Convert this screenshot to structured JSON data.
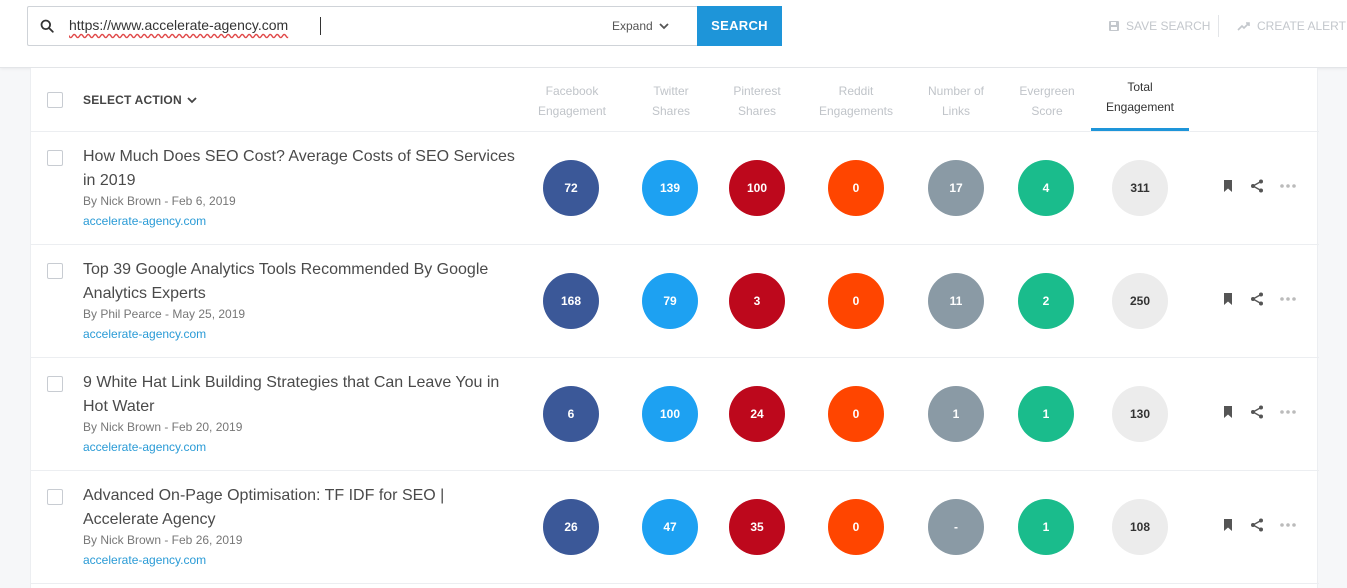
{
  "search": {
    "query": "https://www.accelerate-agency.com",
    "expand_label": "Expand",
    "button_label": "SEARCH"
  },
  "toolbar": {
    "save_search": "SAVE SEARCH",
    "create_alert": "CREATE ALERT"
  },
  "table": {
    "select_action": "SELECT ACTION",
    "columns": [
      {
        "label": "Facebook\nEngagement"
      },
      {
        "label": "Twitter\nShares"
      },
      {
        "label": "Pinterest\nShares"
      },
      {
        "label": "Reddit\nEngagements"
      },
      {
        "label": "Number of\nLinks"
      },
      {
        "label": "Evergreen\nScore"
      },
      {
        "label": "Total\nEngagement"
      }
    ],
    "rows": [
      {
        "title": "How Much Does SEO Cost? Average Costs of SEO Services in 2019",
        "meta": "By Nick Brown - Feb 6, 2019",
        "domain": "accelerate-agency.com",
        "values": [
          "72",
          "139",
          "100",
          "0",
          "17",
          "4",
          "311"
        ]
      },
      {
        "title": "Top 39 Google Analytics Tools Recommended By Google Analytics Experts",
        "meta": "By Phil Pearce - May 25, 2019",
        "domain": "accelerate-agency.com",
        "values": [
          "168",
          "79",
          "3",
          "0",
          "11",
          "2",
          "250"
        ]
      },
      {
        "title": "9 White Hat Link Building Strategies that Can Leave You in Hot Water",
        "meta": "By Nick Brown - Feb 20, 2019",
        "domain": "accelerate-agency.com",
        "values": [
          "6",
          "100",
          "24",
          "0",
          "1",
          "1",
          "130"
        ]
      },
      {
        "title": "Advanced On-Page Optimisation: TF IDF for SEO | Accelerate Agency",
        "meta": "By Nick Brown - Feb 26, 2019",
        "domain": "accelerate-agency.com",
        "values": [
          "26",
          "47",
          "35",
          "0",
          "-",
          "1",
          "108"
        ]
      }
    ]
  },
  "colors": {
    "facebook": "#3b5898",
    "twitter": "#1da1f2",
    "pinterest": "#bd081c",
    "reddit": "#ff4500",
    "links": "#8a9aa5",
    "evergreen": "#1abc8c",
    "accent": "#1e95d9"
  },
  "icons": {
    "search": "search-icon",
    "expand": "chevron-down-icon",
    "save": "save-icon",
    "alert": "trend-icon",
    "bookmark": "bookmark-icon",
    "share": "share-icon",
    "more": "more-icon"
  }
}
